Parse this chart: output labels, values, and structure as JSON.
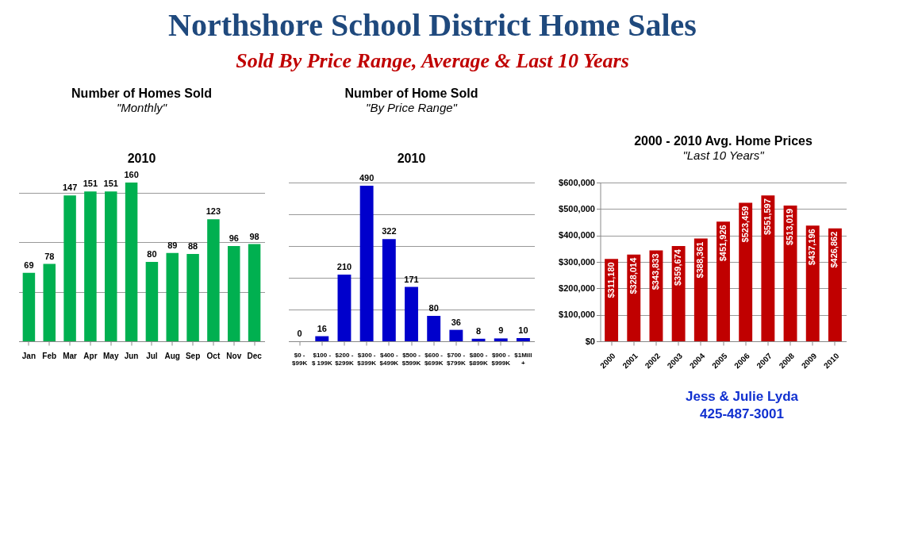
{
  "chart_data": [
    {
      "type": "other",
      "title": "Northshore School District Home Sales",
      "subtitle": "Sold By Price Range, Average & Last 10 Years"
    },
    {
      "type": "bar",
      "title": "Number of Homes Sold",
      "subtitle": "\"Monthly\"",
      "annotations": [
        "2010"
      ],
      "categories": [
        "Jan",
        "Feb",
        "Mar",
        "Apr",
        "May",
        "Jun",
        "Jul",
        "Aug",
        "Sep",
        "Oct",
        "Nov",
        "Dec"
      ],
      "values": [
        69,
        78,
        147,
        151,
        151,
        160,
        80,
        89,
        88,
        123,
        96,
        98
      ],
      "color": "#00b050",
      "grid": "y",
      "tick_labels": "x",
      "data_labels": true
    },
    {
      "type": "bar",
      "title": "Number of Home Sold",
      "subtitle": "\"By Price Range\"",
      "annotations": [
        "2010"
      ],
      "categories": [
        "$0 - $99K",
        "$100 - $ 199K",
        "$200 - $299K",
        "$300 - $399K",
        "$400 - $499K",
        "$500 - $599K",
        "$600 - $699K",
        "$700 - $799K",
        "$800 - $899K",
        "$900 - $999K",
        "$1Mill +"
      ],
      "values": [
        0,
        16,
        210,
        490,
        322,
        171,
        80,
        36,
        8,
        9,
        10
      ],
      "color": "#0000cc",
      "grid": "y",
      "tick_labels": "x",
      "data_labels": true
    },
    {
      "type": "bar",
      "title": "2000 - 2010 Avg. Home Prices",
      "subtitle": "\"Last 10 Years\"",
      "categories": [
        "2000",
        "2001",
        "2002",
        "2003",
        "2004",
        "2005",
        "2006",
        "2007",
        "2008",
        "2009",
        "2010"
      ],
      "values": [
        311180,
        328014,
        343833,
        359674,
        388361,
        451926,
        523459,
        551597,
        513019,
        437196,
        426862
      ],
      "color": "#c00000",
      "value_labels": [
        "$311,180",
        "$328,014",
        "$343,833",
        "$359,674",
        "$388,361",
        "$451,926",
        "$523,459",
        "$551,597",
        "$513,019",
        "$437,196",
        "$426,862"
      ],
      "ylim": [
        0,
        600000
      ],
      "yticks": [
        {
          "value": 0,
          "label": "$0"
        },
        {
          "value": 100000,
          "label": "$100,000"
        },
        {
          "value": 200000,
          "label": "$200,000"
        },
        {
          "value": 300000,
          "label": "$300,000"
        },
        {
          "value": 400000,
          "label": "$400,000"
        },
        {
          "value": 500000,
          "label": "$500,000"
        },
        {
          "value": 600000,
          "label": "$600,000"
        }
      ],
      "grid": "y"
    },
    {
      "type": "other",
      "annotations": [
        "Jess & Julie Lyda",
        "425-487-3001"
      ]
    }
  ]
}
